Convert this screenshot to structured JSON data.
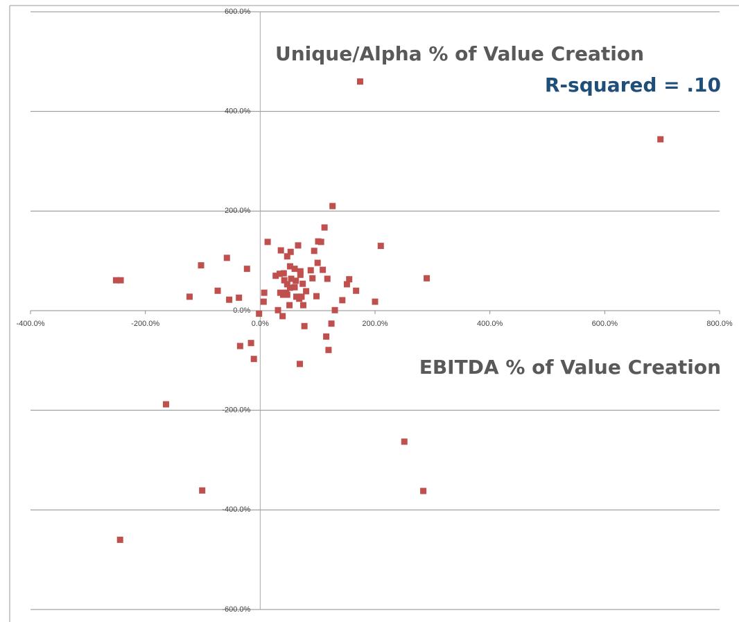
{
  "chart_data": {
    "type": "scatter",
    "ylabel": "Unique/Alpha % of Value Creation",
    "xlabel": "EBITDA % of Value Creation",
    "annotation": "R-squared = .10",
    "color": "#c0504d",
    "xlim": [
      -400,
      800
    ],
    "ylim": [
      -600,
      600
    ],
    "xticks": [
      {
        "value": -400,
        "label": "-400.0%"
      },
      {
        "value": -200,
        "label": "-200.0%"
      },
      {
        "value": 0,
        "label": "0.0%"
      },
      {
        "value": 200,
        "label": "200.0%"
      },
      {
        "value": 400,
        "label": "400.0%"
      },
      {
        "value": 600,
        "label": "600.0%"
      },
      {
        "value": 800,
        "label": "800.0%"
      }
    ],
    "yticks": [
      {
        "value": -600,
        "label": "-600.0%"
      },
      {
        "value": -400,
        "label": "-400.0%"
      },
      {
        "value": -200,
        "label": "-200.0%"
      },
      {
        "value": 0,
        "label": "0.0%"
      },
      {
        "value": 200,
        "label": "200.0%"
      },
      {
        "value": 400,
        "label": "400.0%"
      },
      {
        "value": 600,
        "label": "600.0%"
      }
    ],
    "grid": true,
    "x": [
      174,
      697,
      126,
      210,
      290,
      112,
      101,
      106,
      66,
      13,
      36,
      53,
      47,
      94,
      100,
      -58,
      -103,
      -23,
      109,
      52,
      60,
      70,
      88,
      -251,
      -243,
      27,
      34,
      41,
      70,
      91,
      117,
      155,
      151,
      74,
      47,
      62,
      54,
      42,
      52,
      60,
      80,
      45,
      40,
      35,
      47,
      63,
      68,
      72,
      98,
      143,
      167,
      200,
      -74,
      -123,
      -54,
      -37,
      7,
      6,
      31,
      130,
      75,
      51,
      -2,
      39,
      77,
      124,
      115,
      119,
      69,
      -35,
      -16,
      -11,
      -164,
      251,
      -101,
      284,
      -244
    ],
    "values": [
      460,
      344,
      210,
      130,
      65,
      167,
      139,
      138,
      131,
      138,
      121,
      118,
      109,
      120,
      96,
      106,
      91,
      84,
      82,
      89,
      84,
      79,
      81,
      61,
      61,
      70,
      74,
      75,
      72,
      65,
      64,
      63,
      53,
      54,
      53,
      60,
      64,
      61,
      46,
      47,
      39,
      36,
      32,
      36,
      32,
      28,
      24,
      28,
      29,
      21,
      40,
      18,
      40,
      28,
      22,
      26,
      36,
      18,
      1,
      1,
      11,
      11,
      -6,
      -11,
      -31,
      -26,
      -52,
      -79,
      -107,
      -71,
      -65,
      -97,
      -188,
      -263,
      -361,
      -362,
      -460
    ]
  }
}
